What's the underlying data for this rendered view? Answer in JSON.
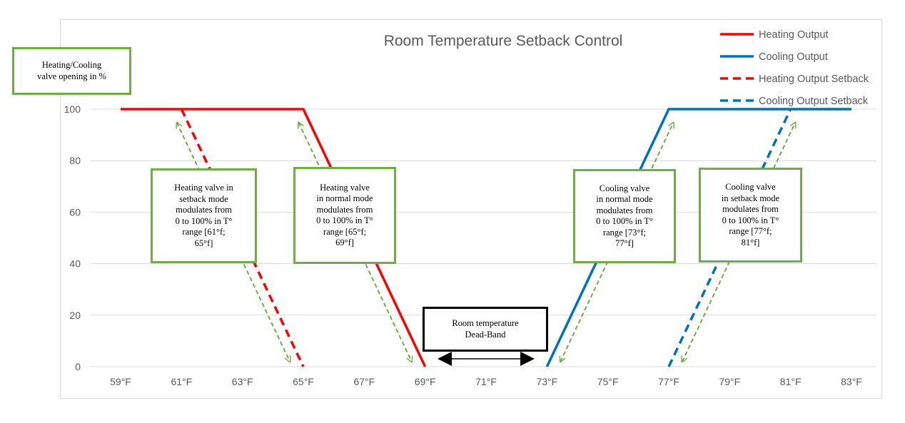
{
  "chart_data": {
    "type": "line",
    "title": "Room Temperature Setback Control",
    "x_tick_labels": [
      "59°F",
      "61°F",
      "63°F",
      "65°F",
      "67°F",
      "69°F",
      "71°F",
      "73°F",
      "75°F",
      "77°F",
      "79°F",
      "81°F",
      "83°F"
    ],
    "x_range": [
      59,
      83
    ],
    "y_ticks": [
      0,
      20,
      40,
      60,
      80,
      100
    ],
    "y_range": [
      0,
      100
    ],
    "grid": {
      "horizontal": true,
      "vertical": false
    },
    "legend_position": "top-right",
    "series": [
      {
        "name": "Heating Output",
        "color": "#ff0000",
        "dash": "solid",
        "points": [
          [
            59,
            100
          ],
          [
            65,
            100
          ],
          [
            69,
            0
          ]
        ]
      },
      {
        "name": "Cooling Output",
        "color": "#0070c0",
        "dash": "solid",
        "points": [
          [
            73,
            0
          ],
          [
            77,
            100
          ],
          [
            83,
            100
          ]
        ]
      },
      {
        "name": "Heating Output Setback",
        "color": "#ff0000",
        "dash": "dashed",
        "points": [
          [
            61,
            100
          ],
          [
            65,
            0
          ]
        ]
      },
      {
        "name": "Cooling Output Setback",
        "color": "#0070c0",
        "dash": "dashed",
        "points": [
          [
            77,
            0
          ],
          [
            81,
            100
          ]
        ]
      }
    ],
    "arrow_color": "#70ad47",
    "range_arrows": [
      {
        "from": [
          61,
          100
        ],
        "to": [
          65,
          0
        ]
      },
      {
        "from": [
          65,
          100
        ],
        "to": [
          69,
          0
        ]
      },
      {
        "from": [
          73,
          0
        ],
        "to": [
          77,
          100
        ]
      },
      {
        "from": [
          77,
          0
        ],
        "to": [
          81,
          100
        ]
      }
    ],
    "deadband_arrow": {
      "from": 69.5,
      "to": 72.5,
      "color": "#000000"
    }
  },
  "annotations": {
    "y_axis_note": "Heating/Cooling\nvalve opening in %",
    "heating_setback_note": "Heating valve in\nsetback mode\nmodulates from\n0 to 100% in T°\nrange [61°f;\n65°f]",
    "heating_normal_note": "Heating valve\nin normal mode\nmodulates from\n0 to 100% in T°\nrange [65°f;\n69°f]",
    "cooling_normal_note": "Cooling valve\nin normal mode\nmodulates from\n0 to 100% in T°\nrange [73°f;\n77°f]",
    "cooling_setback_note": "Cooling valve\nin setback mode\nmodulates from\n0 to 100% in T°\nrange [77°f;\n81°f]",
    "deadband_note": "Room temperature\nDead-Band"
  }
}
